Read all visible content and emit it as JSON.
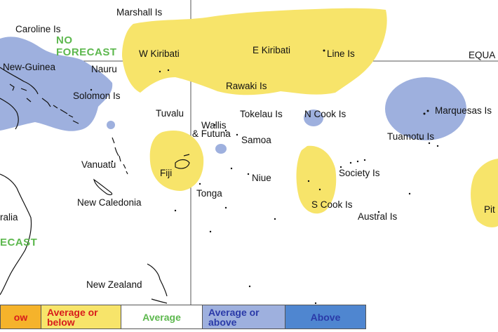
{
  "colors": {
    "below": "#f5b32b",
    "average_or_below": "#f7e46a",
    "average": "#ffffff",
    "average_or_above": "#9eb0de",
    "above": "#4f86d0",
    "no_forecast_text": "#5db84e",
    "legend_below_text": "#d81c1c",
    "legend_average_text": "#5db84e",
    "legend_above_text": "#2a3aa8"
  },
  "labels": {
    "marshall": "Marshall Is",
    "caroline": "Caroline Is",
    "no_forecast_1": "NO",
    "no_forecast_2": "FORECAST",
    "w_kiribati": "W Kiribati",
    "e_kiribati": "E Kiribati",
    "line": "Line Is",
    "equator": "EQUA",
    "png": "New-Guinea",
    "nauru": "Nauru",
    "rawaki": "Rawaki Is",
    "solomon": "Solomon Is",
    "tuvalu": "Tuvalu",
    "wallis_1": "Wallis",
    "wallis_2": "& Futuna",
    "tokelau": "Tokelau Is",
    "n_cook": "N Cook Is",
    "marquesas": "Marquesas Is",
    "samoa": "Samoa",
    "tuamotu": "Tuamotu Is",
    "vanuatu": "Vanuatu",
    "fiji": "Fiji",
    "niue": "Niue",
    "society": "Society Is",
    "tonga": "Tonga",
    "new_caledonia": "New Caledonia",
    "s_cook": "S Cook Is",
    "australia": "ralia",
    "pitcairn": "Pit",
    "austral": "Austral Is",
    "australia_no_forecast": "ECAST",
    "new_zealand": "New Zealand"
  },
  "legend": [
    {
      "label_1": "ow",
      "label_2": ""
    },
    {
      "label_1": "Average or",
      "label_2": "below"
    },
    {
      "label_1": "Average",
      "label_2": ""
    },
    {
      "label_1": "Average or",
      "label_2": "above"
    },
    {
      "label_1": "Above",
      "label_2": ""
    }
  ]
}
